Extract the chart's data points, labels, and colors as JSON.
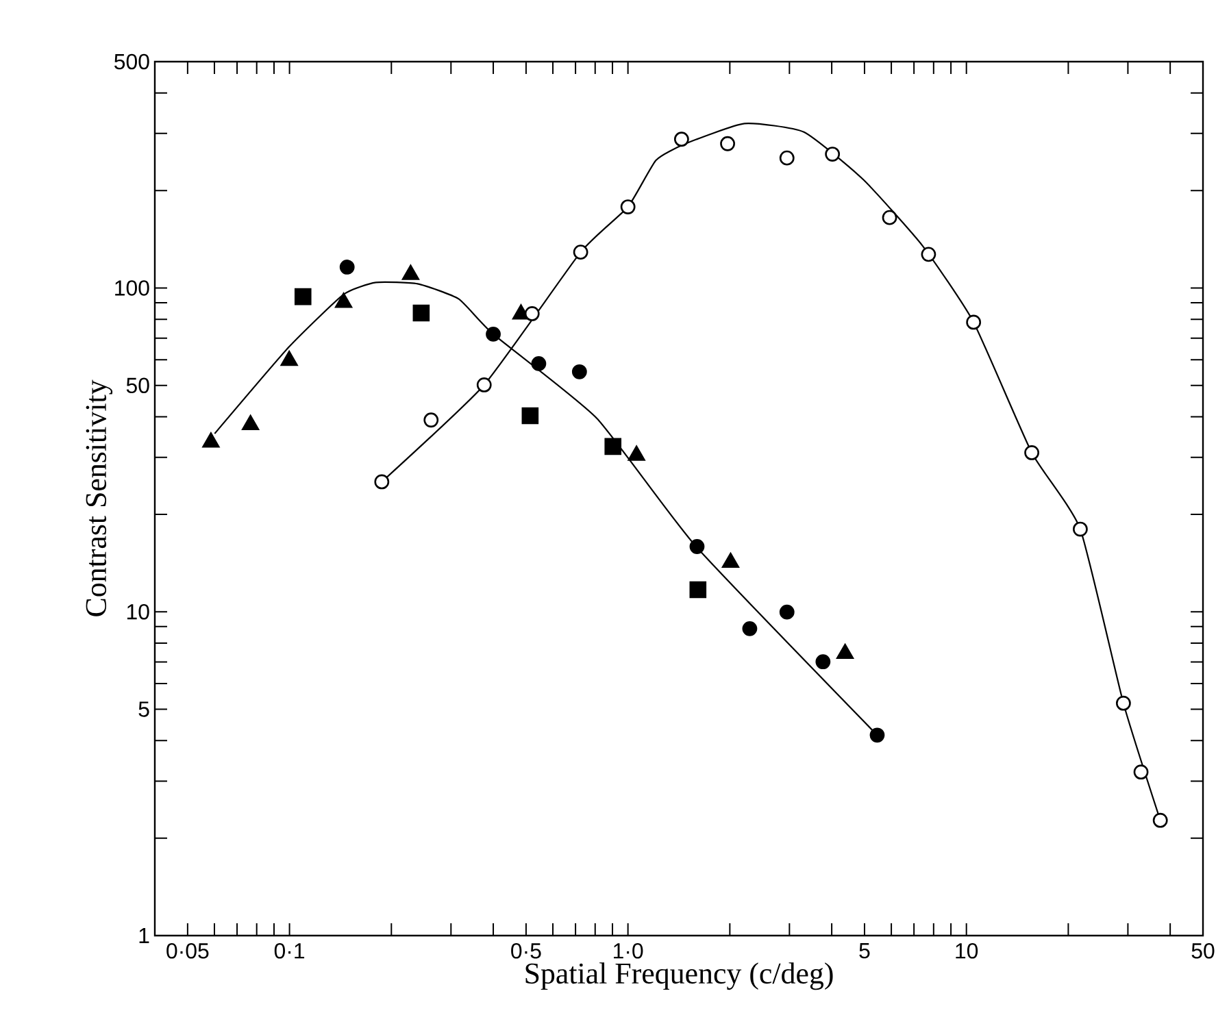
{
  "chart_data": {
    "type": "scatter",
    "xlabel": "Spatial Frequency (c/deg)",
    "ylabel": "Contrast Sensitivity",
    "log": "xy",
    "xlim": [
      0.04,
      50
    ],
    "ylim": [
      1,
      500
    ],
    "xticks": [
      {
        "value": 0.05,
        "label": "0·05"
      },
      {
        "value": 0.06,
        "label": null
      },
      {
        "value": 0.07,
        "label": null
      },
      {
        "value": 0.08,
        "label": null
      },
      {
        "value": 0.09,
        "label": null
      },
      {
        "value": 0.1,
        "label": "0·1"
      },
      {
        "value": 0.2,
        "label": null
      },
      {
        "value": 0.3,
        "label": null
      },
      {
        "value": 0.4,
        "label": null
      },
      {
        "value": 0.5,
        "label": "0·5"
      },
      {
        "value": 0.6,
        "label": null
      },
      {
        "value": 0.7,
        "label": null
      },
      {
        "value": 0.8,
        "label": null
      },
      {
        "value": 0.9,
        "label": null
      },
      {
        "value": 1,
        "label": "1·0"
      },
      {
        "value": 2,
        "label": null
      },
      {
        "value": 3,
        "label": null
      },
      {
        "value": 4,
        "label": null
      },
      5,
      {
        "value": 6,
        "label": null
      },
      {
        "value": 7,
        "label": null
      },
      {
        "value": 8,
        "label": null
      },
      {
        "value": 9,
        "label": null
      },
      10,
      {
        "value": 20,
        "label": null
      },
      {
        "value": 30,
        "label": null
      },
      {
        "value": 40,
        "label": null
      },
      50
    ],
    "yticks": [
      1,
      {
        "value": 2,
        "label": null
      },
      {
        "value": 3,
        "label": null
      },
      {
        "value": 4,
        "label": null
      },
      5,
      {
        "value": 6,
        "label": null
      },
      {
        "value": 7,
        "label": null
      },
      {
        "value": 8,
        "label": null
      },
      {
        "value": 9,
        "label": null
      },
      10,
      {
        "value": 20,
        "label": null
      },
      {
        "value": 30,
        "label": null
      },
      {
        "value": 40,
        "label": null
      },
      50,
      {
        "value": 60,
        "label": null
      },
      {
        "value": 70,
        "label": null
      },
      {
        "value": 80,
        "label": null
      },
      {
        "value": 90,
        "label": null
      },
      100,
      {
        "value": 200,
        "label": null
      },
      {
        "value": 300,
        "label": null
      },
      {
        "value": 400,
        "label": null
      },
      500
    ],
    "series": [
      {
        "type": "line",
        "line_style": "solid",
        "color": "#000000",
        "x": [
          0.0601,
          0.0993,
          0.1445,
          0.18,
          0.239,
          0.316,
          0.4,
          0.809,
          1.59,
          5.45
        ],
        "values": [
          35.5,
          65.5,
          95.5,
          104,
          103,
          92.5,
          72,
          39.6,
          15.9,
          4.16
        ]
      },
      {
        "type": "line",
        "line_style": "solid",
        "color": "#000000",
        "x": [
          0.1874,
          0.376,
          0.725,
          1.0,
          1.21,
          1.48,
          2.21,
          3.31,
          4.96,
          7.42,
          10.5,
          15.6,
          21.7,
          29.1,
          37.4
        ],
        "values": [
          25.2,
          50.2,
          129,
          178,
          248,
          279,
          322,
          303,
          216,
          135,
          78.4,
          31.0,
          18.0,
          5.22,
          2.27
        ]
      },
      {
        "marker": "triangle",
        "color": "#000000",
        "x": [
          0.0586,
          0.0767,
          0.0998,
          0.1445,
          0.228,
          0.483,
          1.06,
          2.01,
          4.38
        ],
        "values": [
          33.4,
          37.8,
          59.7,
          90.2,
          110,
          83,
          30.4,
          14.2,
          7.43
        ]
      },
      {
        "marker": "square",
        "color": "#000000",
        "x": [
          0.1096,
          0.245,
          0.514,
          0.903,
          1.61
        ],
        "values": [
          94,
          83.7,
          40.3,
          32.4,
          11.7
        ]
      },
      {
        "marker": "circle",
        "color": "#000000",
        "x": [
          0.148,
          0.4,
          0.545,
          0.719,
          1.6,
          2.29,
          2.95,
          3.77,
          5.45
        ],
        "values": [
          116,
          72,
          58.4,
          55.1,
          15.9,
          8.87,
          9.98,
          7.01,
          4.16
        ]
      },
      {
        "marker": "circle",
        "color": "#ffffff",
        "x": [
          0.1874,
          0.262,
          0.376,
          0.521,
          0.725,
          1.0,
          1.44,
          1.97,
          2.95,
          4.02,
          5.93,
          7.73,
          10.5,
          15.6,
          21.7,
          29.1,
          32.8,
          37.4
        ],
        "values": [
          25.2,
          39.1,
          50.2,
          83.3,
          129,
          178,
          288,
          279,
          252,
          259,
          165,
          127,
          78.4,
          31.0,
          18.0,
          5.22,
          3.2,
          2.27
        ]
      }
    ]
  }
}
